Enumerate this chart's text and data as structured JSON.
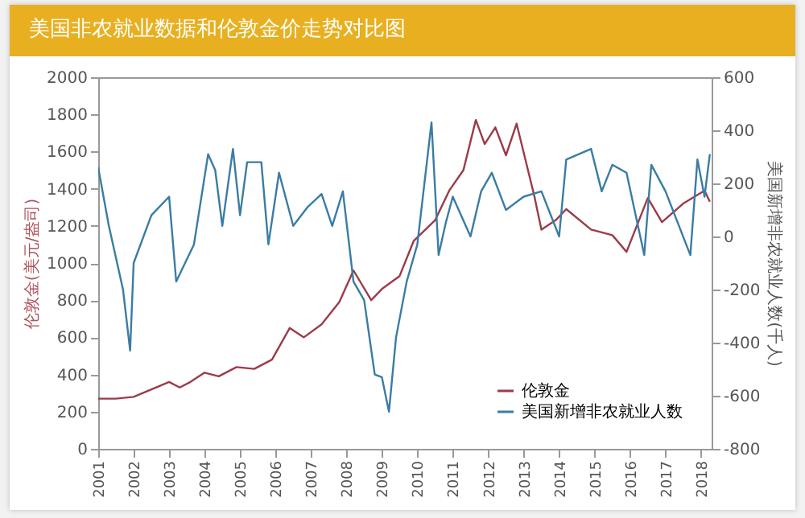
{
  "chart_data": {
    "type": "line",
    "title": "美国非农就业数据和伦敦金价走势对比图",
    "ylabel": "伦敦金(美元/盎司)",
    "y2label": "美国新增非农就业人数(千人)",
    "xlim": [
      2001,
      2018.3
    ],
    "xticks": [
      2001,
      2002,
      2003,
      2004,
      2005,
      2006,
      2007,
      2008,
      2009,
      2010,
      2011,
      2012,
      2013,
      2014,
      2015,
      2016,
      2017,
      2018
    ],
    "ylim": [
      0,
      2000
    ],
    "yticks": [
      0,
      200,
      400,
      600,
      800,
      1000,
      1200,
      1400,
      1600,
      1800,
      2000
    ],
    "y2lim": [
      -800,
      600
    ],
    "y2ticks": [
      -800,
      -600,
      -400,
      -200,
      0,
      200,
      400,
      600
    ],
    "legend": "bottom right",
    "marker": "none",
    "series": [
      {
        "name": "伦敦金",
        "color": "#9b3b4a",
        "x": [
          2001,
          2001.5,
          2002,
          2002.5,
          2003,
          2003.3,
          2003.6,
          2004,
          2004.4,
          2004.9,
          2005.4,
          2005.9,
          2006.4,
          2006.8,
          2007.3,
          2007.8,
          2008.2,
          2008.7,
          2009,
          2009.5,
          2009.9,
          2010.5,
          2010.9,
          2011.3,
          2011.65,
          2011.9,
          2012.2,
          2012.5,
          2012.8,
          2013.3,
          2013.5,
          2013.9,
          2014.2,
          2014.9,
          2015.5,
          2015.9,
          2016.5,
          2016.9,
          2017.5,
          2018.1,
          2018.25
        ],
        "values": [
          270,
          270,
          280,
          320,
          360,
          330,
          360,
          410,
          390,
          440,
          430,
          480,
          650,
          600,
          670,
          790,
          960,
          800,
          860,
          930,
          1120,
          1230,
          1390,
          1500,
          1770,
          1640,
          1730,
          1580,
          1750,
          1360,
          1180,
          1230,
          1290,
          1180,
          1150,
          1060,
          1350,
          1220,
          1320,
          1390,
          1330
        ]
      },
      {
        "name": "美国新增非农就业人数",
        "color": "#3a7ca5",
        "axis": "y2",
        "x": [
          2001,
          2001.3,
          2001.7,
          2001.9,
          2002,
          2002.5,
          2003,
          2003.2,
          2003.7,
          2004.1,
          2004.3,
          2004.5,
          2004.8,
          2005,
          2005.2,
          2005.6,
          2005.8,
          2006.1,
          2006.5,
          2006.9,
          2007.3,
          2007.6,
          2007.9,
          2008.2,
          2008.5,
          2008.8,
          2009,
          2009.2,
          2009.4,
          2009.7,
          2010,
          2010.4,
          2010.6,
          2010.8,
          2011,
          2011.5,
          2011.8,
          2012.1,
          2012.5,
          2013,
          2013.5,
          2014,
          2014.2,
          2014.9,
          2015.2,
          2015.5,
          2015.9,
          2016.4,
          2016.6,
          2017,
          2017.7,
          2017.9,
          2018.1,
          2018.25
        ],
        "values": [
          260,
          40,
          -200,
          -430,
          -100,
          80,
          150,
          -170,
          -30,
          310,
          250,
          40,
          330,
          80,
          280,
          280,
          -30,
          240,
          40,
          110,
          160,
          40,
          170,
          -170,
          -240,
          -520,
          -530,
          -660,
          -380,
          -170,
          -30,
          430,
          -70,
          50,
          150,
          0,
          170,
          240,
          100,
          150,
          170,
          0,
          290,
          330,
          170,
          270,
          240,
          -70,
          270,
          170,
          -70,
          290,
          150,
          310
        ]
      }
    ]
  }
}
